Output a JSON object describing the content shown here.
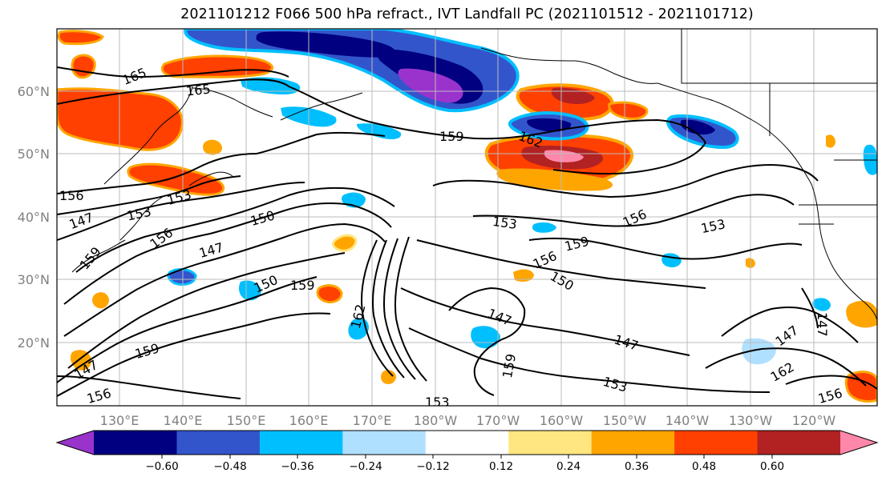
{
  "title": "2021101212 F066 500 hPa refract., IVT Landfall PC (2021101512 - 2021101712)",
  "map": {
    "lat_labels": [
      "60°N",
      "50°N",
      "40°N",
      "30°N",
      "20°N"
    ],
    "lon_labels": [
      "130°E",
      "140°E",
      "150°E",
      "160°E",
      "170°E",
      "180°W",
      "170°W",
      "160°W",
      "150°W",
      "140°W",
      "130°W",
      "120°W"
    ],
    "lat_values": [
      60,
      50,
      40,
      30,
      20
    ],
    "lon_values": [
      130,
      140,
      150,
      160,
      170,
      180,
      -170,
      -160,
      -150,
      -140,
      -130,
      -120
    ],
    "contour_labels": [
      "165",
      "165",
      "159",
      "162",
      "156",
      "153",
      "150",
      "147",
      "156",
      "153",
      "159",
      "150",
      "147",
      "153",
      "156",
      "159",
      "153",
      "150",
      "159",
      "162",
      "147",
      "147",
      "153",
      "156",
      "147",
      "159",
      "156",
      "147",
      "159",
      "156",
      "153",
      "147",
      "162"
    ]
  },
  "colorbar": {
    "tick_labels": [
      "−0.60",
      "−0.48",
      "−0.36",
      "−0.24",
      "−0.12",
      "0.12",
      "0.24",
      "0.36",
      "0.48",
      "0.60"
    ],
    "colors": [
      "#9933cc",
      "#000080",
      "#3355cc",
      "#00bfff",
      "#b0e0ff",
      "#ffffff",
      "#ffe680",
      "#ffa500",
      "#ff4000",
      "#b22222",
      "#ff88aa"
    ]
  }
}
